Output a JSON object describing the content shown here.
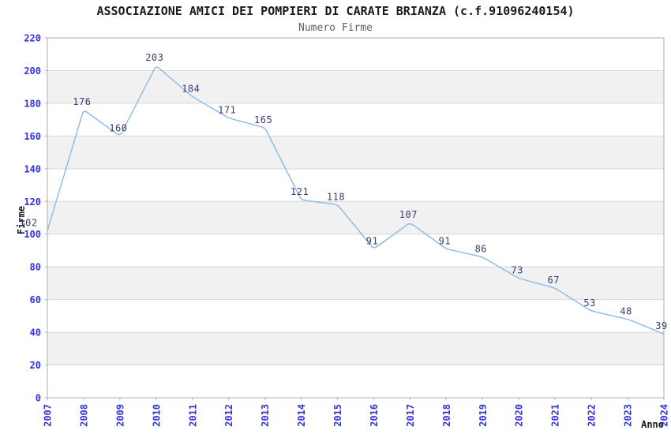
{
  "chart_data": {
    "type": "line",
    "title": "ASSOCIAZIONE AMICI DEI POMPIERI DI CARATE BRIANZA (c.f.91096240154)",
    "subtitle": "Numero Firme",
    "xlabel": "Anno",
    "ylabel": "Firme",
    "categories": [
      "2007",
      "2008",
      "2009",
      "2010",
      "2011",
      "2012",
      "2013",
      "2014",
      "2015",
      "2016",
      "2017",
      "2018",
      "2019",
      "2020",
      "2021",
      "2022",
      "2023",
      "2024"
    ],
    "series": [
      {
        "name": "Numero Firme",
        "values": [
          102,
          176,
          160,
          203,
          184,
          171,
          165,
          121,
          118,
          91,
          107,
          91,
          86,
          73,
          67,
          53,
          48,
          39
        ]
      }
    ],
    "ylim": [
      0,
      220
    ],
    "ytick_step": 20,
    "grid": true,
    "band_style": "alternating-horizontal-stripes",
    "legend_position": "none",
    "point_labels_visible": true,
    "colors": {
      "line": "#8bb9e7",
      "point_label": "#3a3a78",
      "tick_label": "#3333dd",
      "band": "#f1f1f1",
      "grid": "#d8d8d8",
      "border": "#aeaeae",
      "tick_mark": "#aeaeae",
      "title": "#1a1a1a",
      "subtitle": "#5f5f5f",
      "axis_title": "#1a1a1a"
    }
  }
}
